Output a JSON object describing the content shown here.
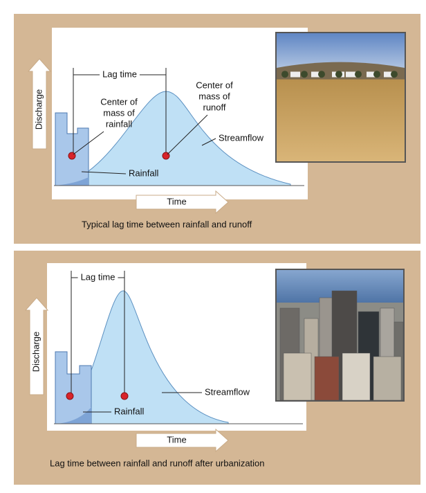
{
  "panels": [
    {
      "y_axis": "Discharge",
      "x_axis": "Time",
      "lag_time": "Lag time",
      "center_rainfall": [
        "Center of",
        "mass of",
        "rainfall"
      ],
      "center_runoff": [
        "Center of",
        "mass of",
        "runoff"
      ],
      "streamflow": "Streamflow",
      "rainfall": "Rainfall",
      "caption": "Typical lag time between rainfall and runoff"
    },
    {
      "y_axis": "Discharge",
      "x_axis": "Time",
      "lag_time": "Lag time",
      "streamflow": "Streamflow",
      "rainfall": "Rainfall",
      "caption": "Lag time between rainfall and runoff after urbanization"
    }
  ]
}
